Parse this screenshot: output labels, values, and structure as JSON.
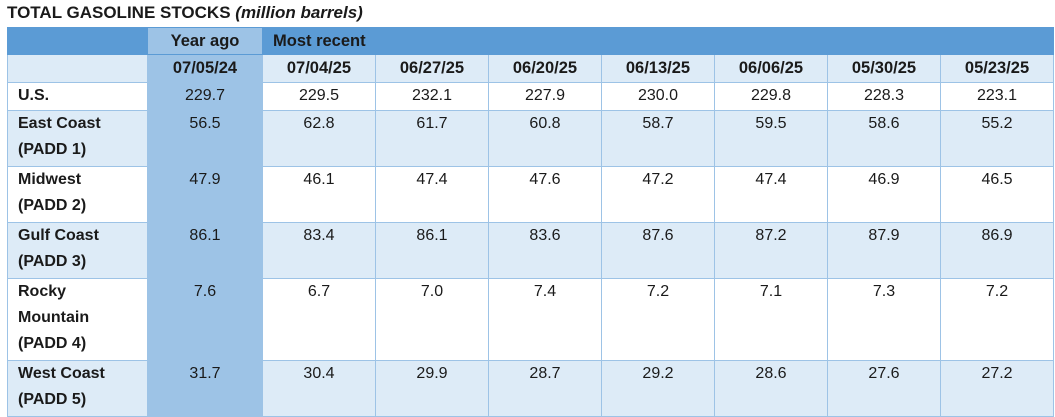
{
  "title": {
    "text": "TOTAL GASOLINE STOCKS",
    "unit": "(million barrels)"
  },
  "table": {
    "group_headers": [
      "Year ago",
      "Most recent"
    ],
    "dates": [
      "07/05/24",
      "07/04/25",
      "06/27/25",
      "06/20/25",
      "06/13/25",
      "06/06/25",
      "05/30/25",
      "05/23/25"
    ],
    "rows": [
      {
        "label": [
          "U.S."
        ],
        "values": [
          "229.7",
          "229.5",
          "232.1",
          "227.9",
          "230.0",
          "229.8",
          "228.3",
          "223.1"
        ]
      },
      {
        "label": [
          "East Coast",
          "(PADD 1)"
        ],
        "values": [
          "56.5",
          "62.8",
          "61.7",
          "60.8",
          "58.7",
          "59.5",
          "58.6",
          "55.2"
        ]
      },
      {
        "label": [
          "Midwest",
          "(PADD 2)"
        ],
        "values": [
          "47.9",
          "46.1",
          "47.4",
          "47.6",
          "47.2",
          "47.4",
          "46.9",
          "46.5"
        ]
      },
      {
        "label": [
          "Gulf Coast",
          "(PADD 3)"
        ],
        "values": [
          "86.1",
          "83.4",
          "86.1",
          "83.6",
          "87.6",
          "87.2",
          "87.9",
          "86.9"
        ]
      },
      {
        "label": [
          "Rocky",
          "Mountain",
          "(PADD 4)"
        ],
        "values": [
          "7.6",
          "6.7",
          "7.0",
          "7.4",
          "7.2",
          "7.1",
          "7.3",
          "7.2"
        ]
      },
      {
        "label": [
          "West Coast",
          "(PADD 5)"
        ],
        "values": [
          "31.7",
          "30.4",
          "29.9",
          "28.7",
          "29.2",
          "28.6",
          "27.6",
          "27.2"
        ]
      }
    ]
  }
}
